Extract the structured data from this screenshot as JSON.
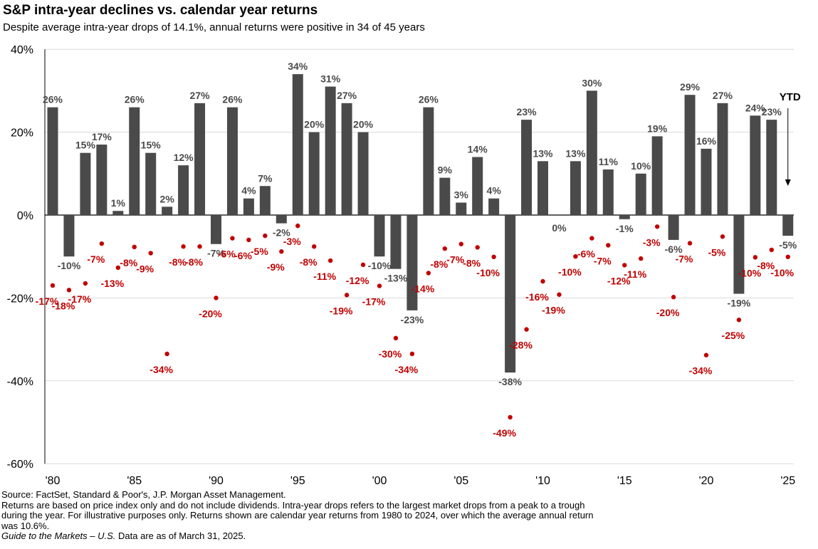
{
  "title": "S&P intra-year declines vs. calendar year returns",
  "subtitle": "Despite average intra-year drops of 14.1%, annual returns were positive in 34 of 45 years",
  "chart_data": {
    "type": "bar",
    "years": [
      1980,
      1981,
      1982,
      1983,
      1984,
      1985,
      1986,
      1987,
      1988,
      1989,
      1990,
      1991,
      1992,
      1993,
      1994,
      1995,
      1996,
      1997,
      1998,
      1999,
      2000,
      2001,
      2002,
      2003,
      2004,
      2005,
      2006,
      2007,
      2008,
      2009,
      2010,
      2011,
      2012,
      2013,
      2014,
      2015,
      2016,
      2017,
      2018,
      2019,
      2020,
      2021,
      2022,
      2023,
      2024,
      2025
    ],
    "series": [
      {
        "values": [
          26,
          -10,
          15,
          17,
          1,
          26,
          15,
          2,
          12,
          27,
          -7,
          26,
          4,
          7,
          -2,
          34,
          20,
          31,
          27,
          20,
          -10,
          -13,
          -23,
          26,
          9,
          3,
          14,
          4,
          -38,
          23,
          13,
          0,
          13,
          30,
          11,
          -1,
          10,
          19,
          -6,
          29,
          16,
          27,
          -19,
          24,
          23,
          -5
        ],
        "labels": [
          "26%",
          "-10%",
          "15%",
          "17%",
          "1%",
          "26%",
          "15%",
          "2%",
          "12%",
          "27%",
          "-7%",
          "26%",
          "4%",
          "7%",
          "-2%",
          "34%",
          "20%",
          "31%",
          "27%",
          "20%",
          "-10%",
          "-13%",
          "-23%",
          "26%",
          "9%",
          "3%",
          "14%",
          "4%",
          "-38%",
          "23%",
          "13%",
          "0%",
          "13%",
          "30%",
          "11%",
          "-1%",
          "10%",
          "19%",
          "-6%",
          "29%",
          "16%",
          "27%",
          "-19%",
          "24%",
          "23%",
          "-5%"
        ],
        "color": "#4a4a4a"
      },
      {
        "values": [
          -17,
          -18,
          -17,
          -7,
          -13,
          -8,
          -9,
          -34,
          -8,
          -8,
          -20,
          -6,
          -6,
          -5,
          -9,
          -3,
          -8,
          -11,
          -19,
          -12,
          -17,
          -30,
          -34,
          -14,
          -8,
          -7,
          -8,
          -10,
          -49,
          -28,
          -16,
          -19,
          -10,
          -6,
          -7,
          -12,
          -11,
          -3,
          -20,
          -7,
          -34,
          -5,
          -25,
          -10,
          -8,
          -10
        ],
        "labels": [
          "-17%",
          "-18%",
          "-17%",
          "-7%",
          "-13%",
          "-8%",
          "-9%",
          "-34%",
          "-8%",
          "-8%",
          "-20%",
          "-6%",
          "-6%",
          "-5%",
          "-9%",
          "-3%",
          "-8%",
          "-11%",
          "-19%",
          "-12%",
          "-17%",
          "-30%",
          "-34%",
          "-14%",
          "-8%",
          "-7%",
          "-8%",
          "-10%",
          "-49%",
          "-28%",
          "-16%",
          "-19%",
          "-10%",
          "-6%",
          "-7%",
          "-12%",
          "-11%",
          "-3%",
          "-20%",
          "-7%",
          "-34%",
          "-5%",
          "-25%",
          "-10%",
          "-8%",
          "-10%"
        ],
        "color": "#c00000"
      }
    ],
    "dot_positions": [
      -17.0,
      -18.1,
      -16.5,
      -6.9,
      -12.7,
      -7.7,
      -9.2,
      -33.5,
      -7.6,
      -7.6,
      -20.0,
      -5.6,
      -6.0,
      -5.0,
      -8.8,
      -2.6,
      -7.6,
      -11.0,
      -19.3,
      -12.0,
      -17.1,
      -29.7,
      -33.5,
      -14.0,
      -8.1,
      -7.0,
      -7.8,
      -10.1,
      -48.8,
      -27.6,
      -16.0,
      -19.2,
      -10.0,
      -5.6,
      -7.3,
      -12.1,
      -10.5,
      -2.8,
      -19.8,
      -6.8,
      -33.8,
      -5.2,
      -25.3,
      -10.2,
      -8.4,
      -10.1
    ],
    "x_tick_labels": [
      "'80",
      "'85",
      "'90",
      "'95",
      "'00",
      "'05",
      "'10",
      "'15",
      "'20",
      "'25"
    ],
    "y_tick_labels": [
      "40%",
      "20%",
      "0%",
      "-20%",
      "-40%",
      "-60%"
    ],
    "ylim": [
      -60,
      40
    ],
    "annotation": "YTD",
    "bar_color": "#4a4a4a",
    "dot_color": "#c00000"
  },
  "footnotes": {
    "source": "Source: FactSet, Standard & Poor's, J.P. Morgan Asset Management.",
    "note_line1": "Returns are based on price index only and do not include dividends. Intra-year drops refers to the largest market drops from a peak to a trough",
    "note_line2": "during the year. For illustrative purposes only. Returns shown are calendar year returns from 1980 to 2024, over which the average annual return",
    "note_line3": "was 10.6%.",
    "guide_italic": "Guide to the Markets – U.S.",
    "date_text": " Data are as of March 31, 2025."
  }
}
